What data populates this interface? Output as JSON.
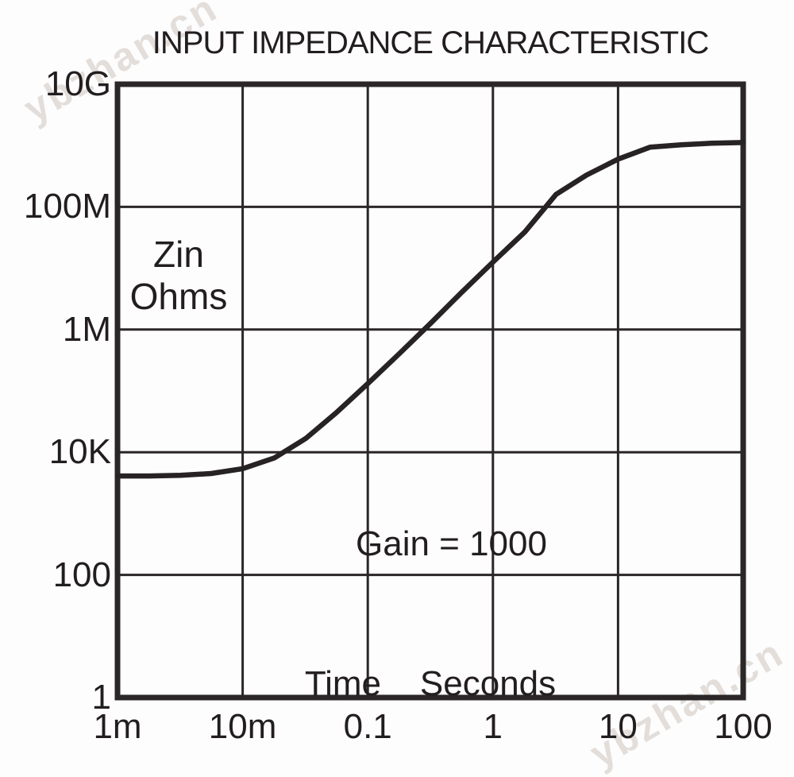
{
  "title": "INPUT IMPEDANCE CHARACTERISTIC",
  "watermark_text": "ybzhan.cn",
  "colors": {
    "line": "#272223",
    "grid": "#2b2627",
    "text": "#221d1e",
    "watermark": "#ddd7d2",
    "background": "#fdfdfd"
  },
  "chart_data": {
    "type": "line",
    "title": "INPUT IMPEDANCE CHARACTERISTIC",
    "annotation": "Gain = 1000",
    "grid": "on",
    "x_axis": {
      "label": "Time    Seconds",
      "scale": "log",
      "range": [
        0.001,
        100
      ],
      "ticks": [
        {
          "value": 0.001,
          "label": "1m"
        },
        {
          "value": 0.01,
          "label": "10m"
        },
        {
          "value": 0.1,
          "label": "0.1"
        },
        {
          "value": 1,
          "label": "1"
        },
        {
          "value": 10,
          "label": "10"
        },
        {
          "value": 100,
          "label": "100"
        }
      ]
    },
    "y_axis": {
      "label_lines": [
        "Zin",
        "Ohms"
      ],
      "scale": "log",
      "range": [
        1,
        10000000000
      ],
      "ticks": [
        {
          "value": 1,
          "label": "1"
        },
        {
          "value": 100,
          "label": "100"
        },
        {
          "value": 10000,
          "label": "10K"
        },
        {
          "value": 1000000,
          "label": "1M"
        },
        {
          "value": 100000000,
          "label": "100M"
        },
        {
          "value": 10000000000,
          "label": "10G"
        }
      ]
    },
    "series": [
      {
        "name": "Zin",
        "points": [
          [
            0.001,
            4100
          ],
          [
            0.0018,
            4100
          ],
          [
            0.0032,
            4200
          ],
          [
            0.0056,
            4500
          ],
          [
            0.01,
            5400
          ],
          [
            0.018,
            8100
          ],
          [
            0.032,
            16800
          ],
          [
            0.056,
            44000
          ],
          [
            0.1,
            131000
          ],
          [
            0.18,
            410000
          ],
          [
            0.32,
            1280000
          ],
          [
            0.56,
            4000000
          ],
          [
            1,
            12600000
          ],
          [
            1.8,
            39000000
          ],
          [
            3.2,
            160000000
          ],
          [
            5.6,
            330000000
          ],
          [
            10,
            600000000
          ],
          [
            18,
            940000000
          ],
          [
            32,
            1030000000
          ],
          [
            56,
            1090000000
          ],
          [
            100,
            1120000000
          ]
        ]
      }
    ]
  }
}
